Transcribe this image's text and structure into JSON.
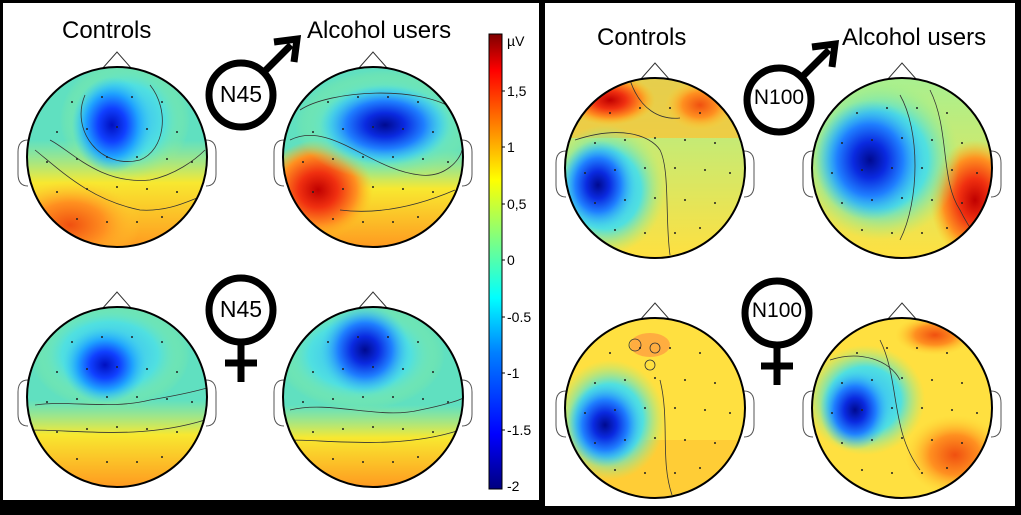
{
  "left_panel": {
    "col_label_controls": "Controls",
    "col_label_alcohol": "Alcohol users",
    "component_male": "N45",
    "component_female": "N45"
  },
  "right_panel": {
    "col_label_controls": "Controls",
    "col_label_alcohol": "Alcohol users",
    "component_male": "N100",
    "component_female": "N100"
  },
  "colorbar": {
    "unit": "µV",
    "ticks": [
      "1,5",
      "1",
      "0,5",
      "0",
      "-0.5",
      "-1",
      "-1.5",
      "-2"
    ],
    "range": [
      -2,
      2
    ],
    "colors": [
      "#00007f",
      "#0000ff",
      "#007fff",
      "#00ffff",
      "#7fff7f",
      "#ffff00",
      "#ff7f00",
      "#ff0000",
      "#7f0000"
    ]
  },
  "symbols": {
    "male": "male-symbol",
    "female": "female-symbol"
  }
}
